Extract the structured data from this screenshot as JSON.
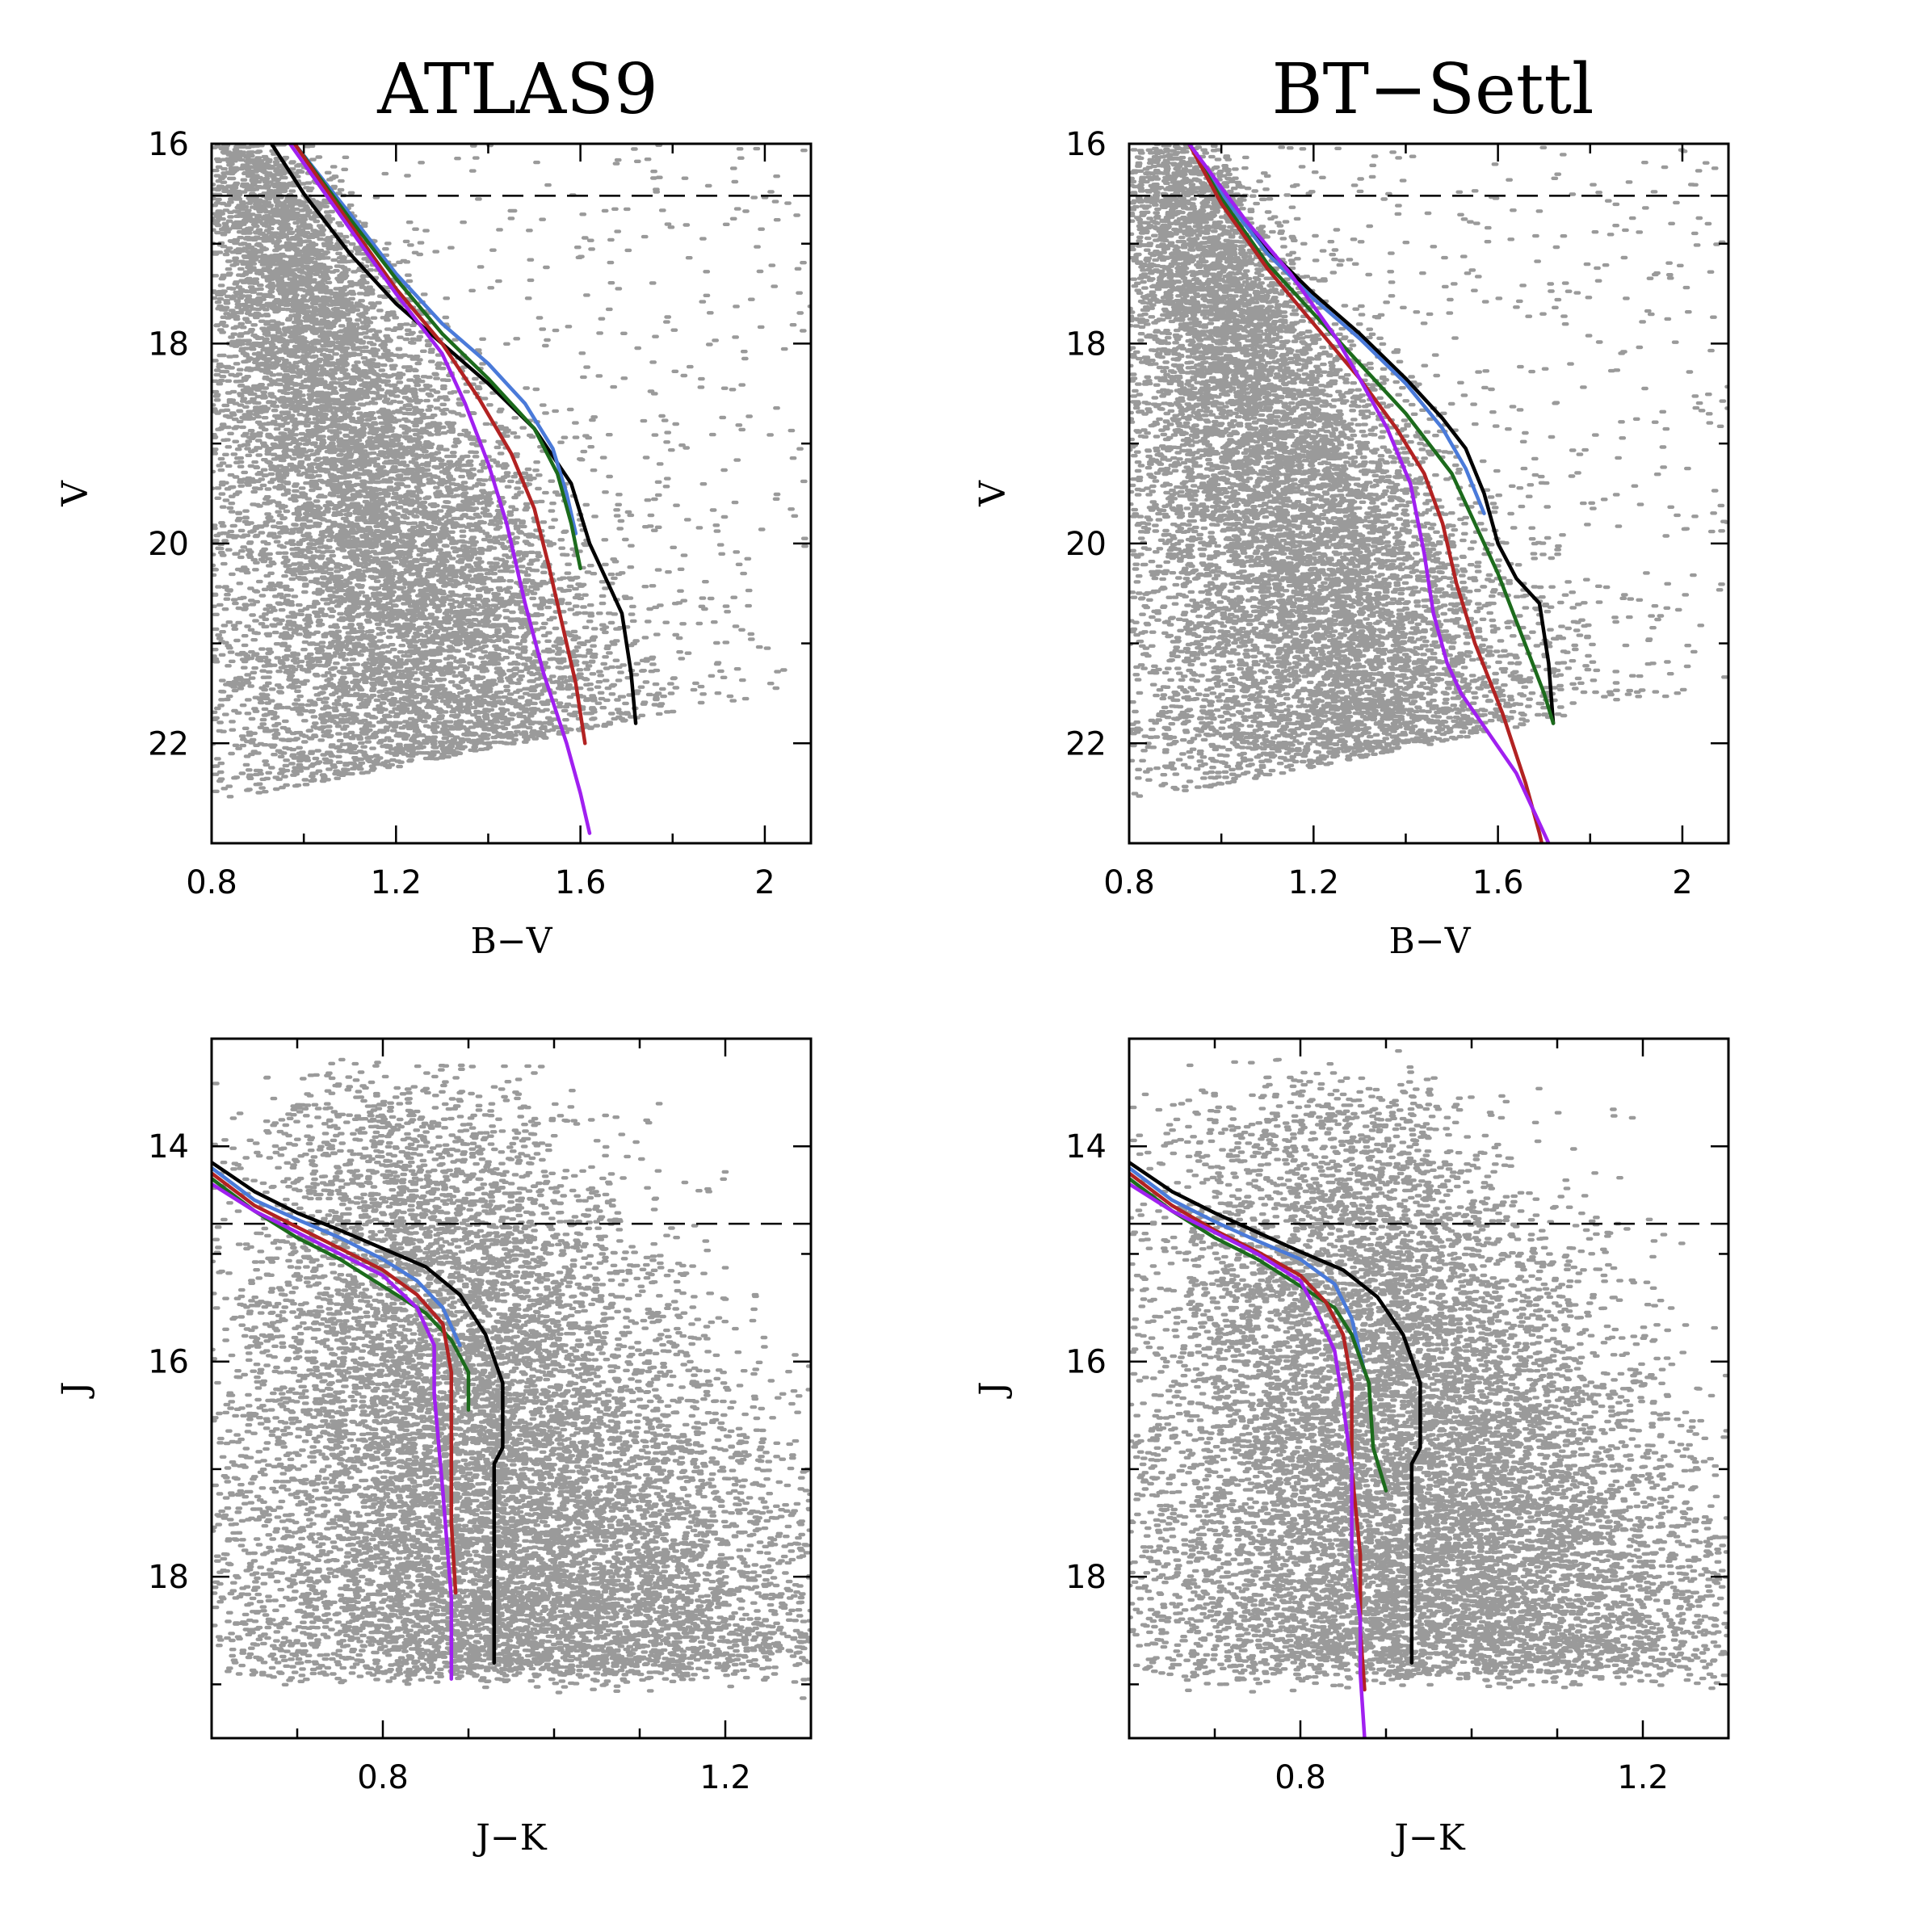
{
  "chart_data": [
    {
      "type": "scatter",
      "title": "ATLAS9",
      "xlabel": "B−V",
      "ylabel": "V",
      "xlim": [
        0.8,
        2.1
      ],
      "ylim": [
        23.0,
        16.0
      ],
      "y_inverted": true,
      "xticks": [
        0.8,
        1.2,
        1.6,
        2
      ],
      "xtick_labels": [
        "0.8",
        "1.2",
        "1.6",
        "2"
      ],
      "yticks": [
        16,
        18,
        20,
        22
      ],
      "ytick_labels": [
        "16",
        "18",
        "20",
        "22"
      ],
      "dashed_line_y": 16.52,
      "scatter_color": "#9a9a9a",
      "series": [
        {
          "color": "#000000",
          "points": [
            [
              0.93,
              16.0
            ],
            [
              1.0,
              16.5
            ],
            [
              1.1,
              17.1
            ],
            [
              1.2,
              17.6
            ],
            [
              1.3,
              18.0
            ],
            [
              1.4,
              18.4
            ],
            [
              1.5,
              18.85
            ],
            [
              1.58,
              19.4
            ],
            [
              1.62,
              20.0
            ],
            [
              1.66,
              20.4
            ],
            [
              1.69,
              20.7
            ],
            [
              1.71,
              21.3
            ],
            [
              1.72,
              21.8
            ]
          ]
        },
        {
          "color": "#4a7ad9",
          "points": [
            [
              0.98,
              16.0
            ],
            [
              1.1,
              16.7
            ],
            [
              1.2,
              17.3
            ],
            [
              1.3,
              17.8
            ],
            [
              1.4,
              18.2
            ],
            [
              1.48,
              18.6
            ],
            [
              1.54,
              19.05
            ],
            [
              1.57,
              19.5
            ],
            [
              1.59,
              19.9
            ]
          ]
        },
        {
          "color": "#1c6b1c",
          "points": [
            [
              0.98,
              16.0
            ],
            [
              1.1,
              16.75
            ],
            [
              1.2,
              17.35
            ],
            [
              1.3,
              17.9
            ],
            [
              1.4,
              18.35
            ],
            [
              1.5,
              18.85
            ],
            [
              1.55,
              19.3
            ],
            [
              1.58,
              19.8
            ],
            [
              1.6,
              20.25
            ]
          ]
        },
        {
          "color": "#b22222",
          "points": [
            [
              0.98,
              16.0
            ],
            [
              1.1,
              16.8
            ],
            [
              1.2,
              17.45
            ],
            [
              1.3,
              18.0
            ],
            [
              1.38,
              18.55
            ],
            [
              1.45,
              19.1
            ],
            [
              1.5,
              19.65
            ],
            [
              1.53,
              20.2
            ],
            [
              1.56,
              20.8
            ],
            [
              1.59,
              21.4
            ],
            [
              1.61,
              22.0
            ]
          ]
        },
        {
          "color": "#a020f0",
          "points": [
            [
              0.97,
              16.0
            ],
            [
              1.1,
              16.85
            ],
            [
              1.2,
              17.5
            ],
            [
              1.3,
              18.1
            ],
            [
              1.35,
              18.6
            ],
            [
              1.4,
              19.2
            ],
            [
              1.44,
              19.8
            ],
            [
              1.48,
              20.6
            ],
            [
              1.52,
              21.3
            ],
            [
              1.57,
              22.0
            ],
            [
              1.6,
              22.5
            ],
            [
              1.62,
              22.9
            ]
          ]
        }
      ]
    },
    {
      "type": "scatter",
      "title": "BT−Settl",
      "xlabel": "B−V",
      "ylabel": "V",
      "xlim": [
        0.8,
        2.1
      ],
      "ylim": [
        23.0,
        16.0
      ],
      "y_inverted": true,
      "xticks": [
        0.8,
        1.2,
        1.6,
        2
      ],
      "xtick_labels": [
        "0.8",
        "1.2",
        "1.6",
        "2"
      ],
      "yticks": [
        16,
        18,
        20,
        22
      ],
      "ytick_labels": [
        "16",
        "18",
        "20",
        "22"
      ],
      "dashed_line_y": 16.52,
      "scatter_color": "#9a9a9a",
      "series": [
        {
          "color": "#000000",
          "points": [
            [
              0.93,
              16.0
            ],
            [
              1.0,
              16.5
            ],
            [
              1.1,
              17.05
            ],
            [
              1.2,
              17.5
            ],
            [
              1.3,
              17.9
            ],
            [
              1.4,
              18.35
            ],
            [
              1.48,
              18.75
            ],
            [
              1.53,
              19.05
            ],
            [
              1.57,
              19.5
            ],
            [
              1.6,
              20.0
            ],
            [
              1.64,
              20.35
            ],
            [
              1.69,
              20.6
            ],
            [
              1.71,
              21.2
            ],
            [
              1.72,
              21.8
            ]
          ]
        },
        {
          "color": "#4a7ad9",
          "points": [
            [
              0.93,
              16.0
            ],
            [
              1.0,
              16.5
            ],
            [
              1.1,
              17.1
            ],
            [
              1.2,
              17.55
            ],
            [
              1.3,
              17.95
            ],
            [
              1.4,
              18.4
            ],
            [
              1.48,
              18.85
            ],
            [
              1.53,
              19.25
            ],
            [
              1.57,
              19.7
            ]
          ]
        },
        {
          "color": "#1c6b1c",
          "points": [
            [
              0.93,
              16.0
            ],
            [
              1.0,
              16.55
            ],
            [
              1.1,
              17.2
            ],
            [
              1.2,
              17.7
            ],
            [
              1.3,
              18.2
            ],
            [
              1.4,
              18.7
            ],
            [
              1.5,
              19.3
            ],
            [
              1.55,
              19.8
            ],
            [
              1.6,
              20.3
            ],
            [
              1.65,
              20.9
            ],
            [
              1.7,
              21.5
            ],
            [
              1.72,
              21.8
            ]
          ]
        },
        {
          "color": "#b22222",
          "points": [
            [
              0.93,
              16.0
            ],
            [
              1.0,
              16.6
            ],
            [
              1.1,
              17.25
            ],
            [
              1.2,
              17.8
            ],
            [
              1.3,
              18.35
            ],
            [
              1.38,
              18.85
            ],
            [
              1.44,
              19.3
            ],
            [
              1.48,
              19.8
            ],
            [
              1.51,
              20.4
            ],
            [
              1.55,
              21.0
            ],
            [
              1.61,
              21.7
            ],
            [
              1.66,
              22.4
            ],
            [
              1.69,
              22.9
            ],
            [
              1.7,
              23.1
            ]
          ]
        },
        {
          "color": "#a020f0",
          "points": [
            [
              0.93,
              16.0
            ],
            [
              1.05,
              16.75
            ],
            [
              1.15,
              17.3
            ],
            [
              1.25,
              17.95
            ],
            [
              1.3,
              18.35
            ],
            [
              1.36,
              18.85
            ],
            [
              1.41,
              19.4
            ],
            [
              1.44,
              20.1
            ],
            [
              1.46,
              20.7
            ],
            [
              1.49,
              21.2
            ],
            [
              1.52,
              21.5
            ],
            [
              1.58,
              21.9
            ],
            [
              1.64,
              22.3
            ],
            [
              1.69,
              22.8
            ],
            [
              1.72,
              23.1
            ]
          ]
        }
      ]
    },
    {
      "type": "scatter",
      "xlabel": "J−K",
      "ylabel": "J",
      "xlim": [
        0.6,
        1.3
      ],
      "ylim": [
        19.5,
        13.0
      ],
      "y_inverted": true,
      "xticks": [
        0.8,
        1.2
      ],
      "xtick_labels": [
        "0.8",
        "1.2"
      ],
      "minor_xticks": [
        0.7,
        0.9,
        1.0,
        1.1
      ],
      "yticks": [
        14,
        16,
        18
      ],
      "ytick_labels": [
        "14",
        "16",
        "18"
      ],
      "minor_yticks": [
        15,
        17,
        19
      ],
      "dashed_line_y": 14.72,
      "scatter_color": "#9a9a9a",
      "series": [
        {
          "color": "#000000",
          "points": [
            [
              0.6,
              14.15
            ],
            [
              0.65,
              14.42
            ],
            [
              0.7,
              14.62
            ],
            [
              0.75,
              14.78
            ],
            [
              0.8,
              14.95
            ],
            [
              0.85,
              15.12
            ],
            [
              0.89,
              15.38
            ],
            [
              0.92,
              15.75
            ],
            [
              0.94,
              16.2
            ],
            [
              0.94,
              16.8
            ],
            [
              0.93,
              16.95
            ],
            [
              0.93,
              17.8
            ],
            [
              0.93,
              18.8
            ]
          ]
        },
        {
          "color": "#4a7ad9",
          "points": [
            [
              0.6,
              14.2
            ],
            [
              0.65,
              14.5
            ],
            [
              0.7,
              14.68
            ],
            [
              0.75,
              14.85
            ],
            [
              0.8,
              15.05
            ],
            [
              0.84,
              15.25
            ],
            [
              0.87,
              15.5
            ],
            [
              0.89,
              15.85
            ]
          ]
        },
        {
          "color": "#1c6b1c",
          "points": [
            [
              0.6,
              14.3
            ],
            [
              0.65,
              14.6
            ],
            [
              0.7,
              14.85
            ],
            [
              0.75,
              15.05
            ],
            [
              0.8,
              15.3
            ],
            [
              0.85,
              15.55
            ],
            [
              0.88,
              15.8
            ],
            [
              0.9,
              16.1
            ],
            [
              0.9,
              16.45
            ]
          ]
        },
        {
          "color": "#b22222",
          "points": [
            [
              0.6,
              14.25
            ],
            [
              0.65,
              14.55
            ],
            [
              0.7,
              14.75
            ],
            [
              0.75,
              14.95
            ],
            [
              0.8,
              15.15
            ],
            [
              0.84,
              15.38
            ],
            [
              0.87,
              15.65
            ],
            [
              0.88,
              16.1
            ],
            [
              0.88,
              16.8
            ],
            [
              0.88,
              17.5
            ],
            [
              0.885,
              18.15
            ]
          ]
        },
        {
          "color": "#a020f0",
          "points": [
            [
              0.6,
              14.35
            ],
            [
              0.65,
              14.6
            ],
            [
              0.7,
              14.8
            ],
            [
              0.75,
              15.0
            ],
            [
              0.8,
              15.2
            ],
            [
              0.84,
              15.5
            ],
            [
              0.86,
              15.85
            ],
            [
              0.86,
              16.3
            ],
            [
              0.87,
              17.2
            ],
            [
              0.88,
              18.2
            ],
            [
              0.88,
              18.95
            ]
          ]
        }
      ]
    },
    {
      "type": "scatter",
      "xlabel": "J−K",
      "ylabel": "J",
      "xlim": [
        0.6,
        1.3
      ],
      "ylim": [
        19.5,
        13.0
      ],
      "y_inverted": true,
      "xticks": [
        0.8,
        1.2
      ],
      "xtick_labels": [
        "0.8",
        "1.2"
      ],
      "minor_xticks": [
        0.7,
        0.9,
        1.0,
        1.1
      ],
      "yticks": [
        14,
        16,
        18
      ],
      "ytick_labels": [
        "14",
        "16",
        "18"
      ],
      "minor_yticks": [
        15,
        17,
        19
      ],
      "dashed_line_y": 14.72,
      "scatter_color": "#9a9a9a",
      "series": [
        {
          "color": "#000000",
          "points": [
            [
              0.6,
              14.15
            ],
            [
              0.65,
              14.42
            ],
            [
              0.7,
              14.62
            ],
            [
              0.75,
              14.8
            ],
            [
              0.8,
              14.98
            ],
            [
              0.85,
              15.15
            ],
            [
              0.89,
              15.4
            ],
            [
              0.92,
              15.75
            ],
            [
              0.94,
              16.2
            ],
            [
              0.94,
              16.8
            ],
            [
              0.93,
              16.95
            ],
            [
              0.93,
              17.8
            ],
            [
              0.93,
              18.8
            ]
          ]
        },
        {
          "color": "#4a7ad9",
          "points": [
            [
              0.6,
              14.2
            ],
            [
              0.65,
              14.5
            ],
            [
              0.7,
              14.7
            ],
            [
              0.75,
              14.88
            ],
            [
              0.8,
              15.05
            ],
            [
              0.84,
              15.28
            ],
            [
              0.86,
              15.6
            ],
            [
              0.875,
              16.1
            ]
          ]
        },
        {
          "color": "#1c6b1c",
          "points": [
            [
              0.6,
              14.3
            ],
            [
              0.65,
              14.6
            ],
            [
              0.7,
              14.85
            ],
            [
              0.75,
              15.05
            ],
            [
              0.8,
              15.3
            ],
            [
              0.84,
              15.5
            ],
            [
              0.86,
              15.75
            ],
            [
              0.88,
              16.2
            ],
            [
              0.885,
              16.8
            ],
            [
              0.9,
              17.2
            ]
          ]
        },
        {
          "color": "#b22222",
          "points": [
            [
              0.6,
              14.25
            ],
            [
              0.65,
              14.55
            ],
            [
              0.7,
              14.78
            ],
            [
              0.75,
              14.98
            ],
            [
              0.8,
              15.2
            ],
            [
              0.83,
              15.45
            ],
            [
              0.85,
              15.75
            ],
            [
              0.86,
              16.2
            ],
            [
              0.86,
              17.0
            ],
            [
              0.87,
              17.8
            ],
            [
              0.87,
              18.5
            ],
            [
              0.875,
              19.05
            ]
          ]
        },
        {
          "color": "#a020f0",
          "points": [
            [
              0.6,
              14.35
            ],
            [
              0.65,
              14.6
            ],
            [
              0.7,
              14.8
            ],
            [
              0.75,
              15.0
            ],
            [
              0.8,
              15.25
            ],
            [
              0.82,
              15.55
            ],
            [
              0.84,
              15.9
            ],
            [
              0.85,
              16.4
            ],
            [
              0.86,
              17.0
            ],
            [
              0.86,
              17.8
            ],
            [
              0.87,
              18.4
            ],
            [
              0.87,
              18.9
            ],
            [
              0.875,
              19.5
            ]
          ]
        }
      ]
    }
  ]
}
